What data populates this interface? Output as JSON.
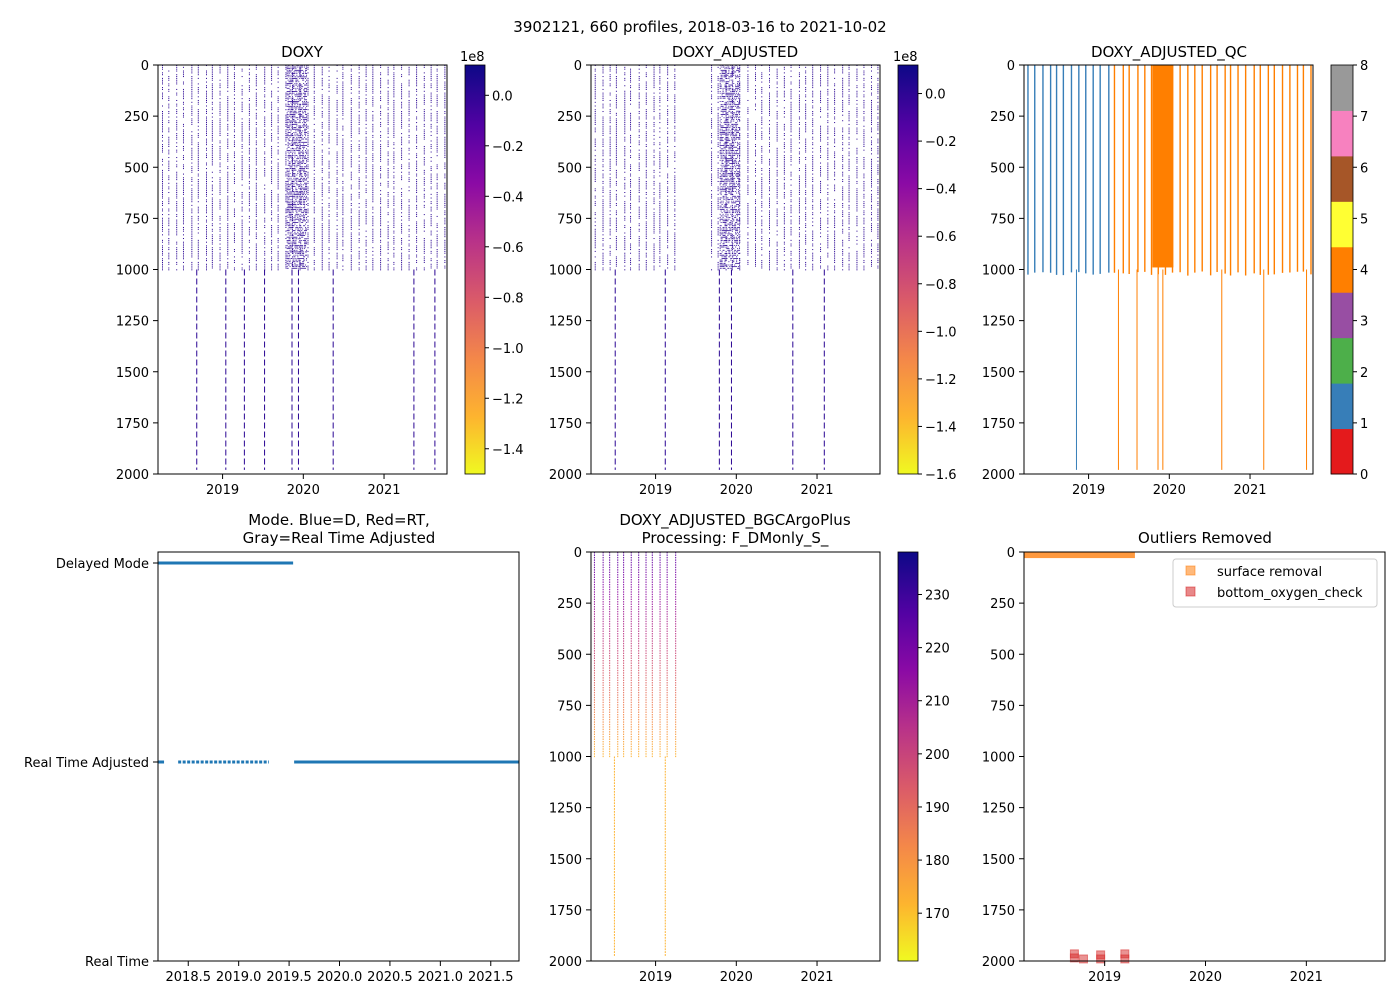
{
  "figure_title": "3902121, 660 profiles, 2018-03-16 to 2021-10-02",
  "chart_data": [
    {
      "id": "doxy",
      "type": "heatmap",
      "title": "DOXY",
      "ylim": [
        2000,
        0
      ],
      "yticks": [
        0,
        250,
        500,
        750,
        1000,
        1250,
        1500,
        1750,
        2000
      ],
      "xlim": [
        2018.2,
        2021.78
      ],
      "xticks": [
        2019,
        2020,
        2021
      ],
      "xtick_labels": [
        "2019",
        "2020",
        "2021"
      ],
      "colorbar": {
        "cmap": "plasma_r",
        "offset_label": "1e8",
        "range": [
          -1.5,
          0.12
        ],
        "ticks": [
          0.0,
          -0.2,
          -0.4,
          -0.6,
          -0.8,
          -1.0,
          -1.2,
          -1.4
        ],
        "tick_labels": [
          "0.0",
          "−0.2",
          "−0.4",
          "−0.6",
          "−0.8",
          "−1.0",
          "−1.2",
          "−1.4"
        ]
      },
      "profile_color": "#2a0593",
      "profile_span": [
        2018.25,
        2021.76
      ],
      "shallow_depth": 1000,
      "deep_profiles": [
        2018.68,
        2019.04,
        2019.27,
        2019.52,
        2019.86,
        2019.94,
        2020.37,
        2021.37,
        2021.63
      ],
      "dense_period": [
        2019.8,
        2020.05
      ]
    },
    {
      "id": "doxy-adjusted",
      "type": "heatmap",
      "title": "DOXY_ADJUSTED",
      "ylim": [
        2000,
        0
      ],
      "yticks": [
        0,
        250,
        500,
        750,
        1000,
        1250,
        1500,
        1750,
        2000
      ],
      "xlim": [
        2018.2,
        2021.78
      ],
      "xticks": [
        2019,
        2020,
        2021
      ],
      "xtick_labels": [
        "2019",
        "2020",
        "2021"
      ],
      "colorbar": {
        "cmap": "plasma_r",
        "offset_label": "1e8",
        "range": [
          -1.6,
          0.12
        ],
        "ticks": [
          0.0,
          -0.2,
          -0.4,
          -0.6,
          -0.8,
          -1.0,
          -1.2,
          -1.4,
          -1.6
        ],
        "tick_labels": [
          "0.0",
          "−0.2",
          "−0.4",
          "−0.6",
          "−0.8",
          "−1.0",
          "−1.2",
          "−1.4",
          "−1.6"
        ]
      },
      "profile_color": "#2a0593",
      "profile_span": [
        2018.25,
        2021.76
      ],
      "shallow_depth": 1000,
      "gap_period": [
        2019.28,
        2019.65
      ],
      "deep_profiles": [
        2018.5,
        2019.12,
        2019.79,
        2019.94,
        2020.7,
        2021.09
      ],
      "dense_period": [
        2019.8,
        2020.05
      ]
    },
    {
      "id": "doxy-adjusted-qc",
      "type": "heatmap",
      "title": "DOXY_ADJUSTED_QC",
      "ylim": [
        2000,
        0
      ],
      "yticks": [
        0,
        250,
        500,
        750,
        1000,
        1250,
        1500,
        1750,
        2000
      ],
      "xlim": [
        2018.2,
        2021.78
      ],
      "xticks": [
        2019,
        2020,
        2021
      ],
      "xtick_labels": [
        "2019",
        "2020",
        "2021"
      ],
      "colorbar": {
        "cmap": "discrete",
        "colors": [
          "#e41a1c",
          "#377eb8",
          "#4daf4a",
          "#984ea3",
          "#ff7f00",
          "#ffff33",
          "#a65628",
          "#f781bf",
          "#999999"
        ],
        "range": [
          0,
          8
        ],
        "ticks": [
          0,
          1,
          2,
          3,
          4,
          5,
          6,
          7,
          8
        ],
        "tick_labels": [
          "0",
          "1",
          "2",
          "3",
          "4",
          "5",
          "6",
          "7",
          "8"
        ]
      },
      "qc1_color": "#377eb8",
      "qc4_color": "#ff7f00",
      "qc_switch_date": 2019.25,
      "profile_span": [
        2018.25,
        2021.76
      ],
      "shallow_depth": 1000,
      "deep_profiles": [
        2018.85,
        2019.37,
        2019.6,
        2019.86,
        2019.92,
        2020.65,
        2021.17,
        2021.7
      ],
      "dense_period": [
        2019.79,
        2020.05
      ]
    },
    {
      "id": "mode",
      "type": "scatter",
      "title_lines": [
        "Mode. Blue=D, Red=RT,",
        "Gray=Real Time Adjusted"
      ],
      "y_categories": [
        "Delayed Mode",
        "Real Time Adjusted",
        "Real Time"
      ],
      "xlim": [
        2018.2,
        2021.78
      ],
      "xticks": [
        2018.5,
        2019.0,
        2019.5,
        2020.0,
        2020.5,
        2021.0,
        2021.5
      ],
      "xtick_labels": [
        "2018.5",
        "2019.0",
        "2019.5",
        "2020.0",
        "2020.5",
        "2021.0",
        "2021.5"
      ],
      "point_color": "#1f77b4",
      "delayed_mode_span": [
        2018.2,
        2019.54
      ],
      "rt_adjusted_segments": [
        [
          2018.2,
          2018.26
        ],
        [
          2018.4,
          2019.3
        ],
        [
          2019.55,
          2021.78
        ]
      ]
    },
    {
      "id": "doxy-adjusted-bgcargoplus",
      "type": "heatmap",
      "title_lines": [
        "DOXY_ADJUSTED_BGCArgoPlus",
        "Processing: F_DMonly_S_"
      ],
      "ylim": [
        2000,
        0
      ],
      "yticks": [
        0,
        250,
        500,
        750,
        1000,
        1250,
        1500,
        1750,
        2000
      ],
      "xlim": [
        2018.2,
        2021.78
      ],
      "xticks": [
        2019,
        2020,
        2021
      ],
      "xtick_labels": [
        "2019",
        "2020",
        "2021"
      ],
      "colorbar": {
        "cmap": "plasma_r",
        "range": [
          161,
          238
        ],
        "ticks": [
          170,
          180,
          190,
          200,
          210,
          220,
          230
        ],
        "tick_labels": [
          "170",
          "180",
          "190",
          "200",
          "210",
          "220",
          "230"
        ]
      },
      "profile_span": [
        2018.25,
        2019.27
      ],
      "shallow_depth": 1000,
      "deep_profiles": [
        2018.49,
        2019.12
      ],
      "surface_value": 225,
      "deep_value": 172
    },
    {
      "id": "outliers-removed",
      "type": "scatter",
      "title": "Outliers Removed",
      "ylim": [
        2000,
        0
      ],
      "yticks": [
        0,
        250,
        500,
        750,
        1000,
        1250,
        1500,
        1750,
        2000
      ],
      "xlim": [
        2018.2,
        2021.78
      ],
      "xticks": [
        2019,
        2020,
        2021
      ],
      "xtick_labels": [
        "2019",
        "2020",
        "2021"
      ],
      "series": [
        {
          "name": "surface removal",
          "color": "#ff7f0e",
          "x_range": [
            2018.2,
            2019.3
          ],
          "depth_range": [
            0,
            20
          ]
        },
        {
          "name": "bottom_oxygen_check",
          "color": "#d62728",
          "points": [
            [
              2018.7,
              1965
            ],
            [
              2018.7,
              1985
            ],
            [
              2018.79,
              1990
            ],
            [
              2018.96,
              1970
            ],
            [
              2018.96,
              1990
            ],
            [
              2019.2,
              1965
            ],
            [
              2019.2,
              1990
            ]
          ]
        }
      ],
      "legend_position": "upper-right"
    }
  ]
}
